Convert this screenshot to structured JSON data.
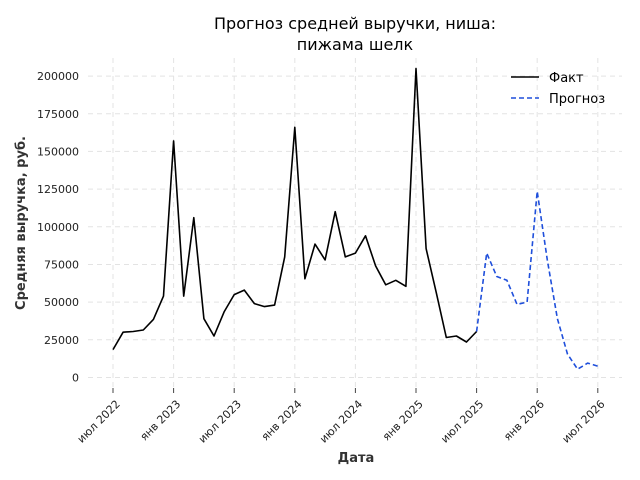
{
  "chart_data": {
    "type": "line",
    "title": [
      "Прогноз средней выручки, ниша:",
      "пижама шелк"
    ],
    "xlabel": "Дата",
    "ylabel": "Средняя выручка, руб.",
    "x_tick_labels": [
      "июл 2022",
      "янв 2023",
      "июл 2023",
      "янв 2024",
      "июл 2024",
      "янв 2025",
      "июл 2025",
      "янв 2026",
      "июл 2026"
    ],
    "y_ticks": [
      0,
      25000,
      50000,
      75000,
      100000,
      125000,
      150000,
      175000,
      200000
    ],
    "ylim": [
      -7000,
      212000
    ],
    "grid": true,
    "legend_position": "top-right",
    "series": [
      {
        "name": "Факт",
        "color": "#000000",
        "style": "solid",
        "x": [
          "2022-07",
          "2022-08",
          "2022-09",
          "2022-10",
          "2022-11",
          "2022-12",
          "2023-01",
          "2023-02",
          "2023-03",
          "2023-04",
          "2023-05",
          "2023-06",
          "2023-07",
          "2023-08",
          "2023-09",
          "2023-10",
          "2023-11",
          "2023-12",
          "2024-01",
          "2024-02",
          "2024-03",
          "2024-04",
          "2024-05",
          "2024-06",
          "2024-07",
          "2024-08",
          "2024-09",
          "2024-10",
          "2024-11",
          "2024-12",
          "2025-01",
          "2025-02",
          "2025-03",
          "2025-04",
          "2025-05",
          "2025-06",
          "2025-07"
        ],
        "values": [
          18500,
          30000,
          30500,
          31500,
          38500,
          54000,
          157000,
          54000,
          106000,
          39000,
          27500,
          43500,
          55000,
          58000,
          49000,
          47000,
          48000,
          80000,
          166000,
          65500,
          88500,
          78000,
          110000,
          80000,
          82500,
          94000,
          74000,
          61500,
          64500,
          60500,
          205000,
          85500,
          56500,
          26500,
          27500,
          23500,
          30500
        ]
      },
      {
        "name": "Прогноз",
        "color": "#1f4fdb",
        "style": "dashed",
        "x": [
          "2025-07",
          "2025-08",
          "2025-09",
          "2025-10",
          "2025-11",
          "2025-12",
          "2026-01",
          "2026-02",
          "2026-03",
          "2026-04",
          "2026-05",
          "2026-06",
          "2026-07"
        ],
        "values": [
          30500,
          82500,
          67000,
          64500,
          48500,
          50000,
          123500,
          78000,
          39000,
          15500,
          5500,
          9500,
          7500
        ]
      }
    ]
  }
}
